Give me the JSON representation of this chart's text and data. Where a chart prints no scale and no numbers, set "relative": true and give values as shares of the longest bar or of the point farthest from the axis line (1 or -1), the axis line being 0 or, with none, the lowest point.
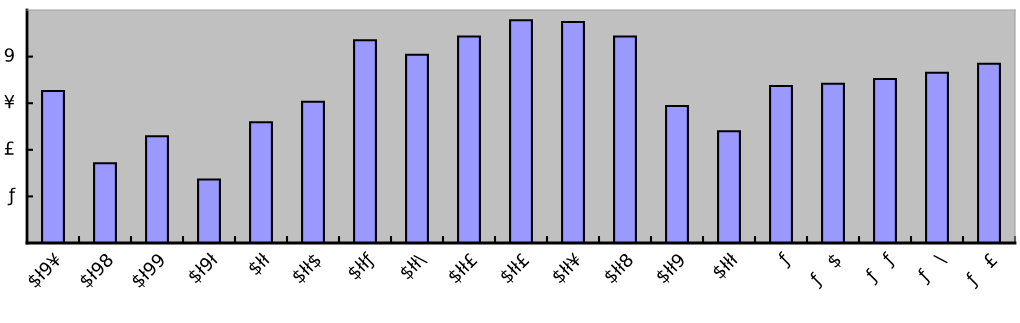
{
  "chart_data": {
    "type": "bar",
    "categories": [
      "$ł9¥",
      "$ł98",
      "$ł99",
      "$ł9ł",
      "$łł",
      "$łł$",
      "$łłƒ",
      "$łł\\",
      "$łł£",
      "$łł£",
      "$łł¥",
      "$łł8",
      "$łł9",
      "$łłł",
      "ƒ",
      "ƒ   $",
      "ƒ   ƒ",
      "ƒ   \\",
      "ƒ   £"
    ],
    "values": [
      0.682,
      0.358,
      0.479,
      0.285,
      0.542,
      0.634,
      0.91,
      0.845,
      0.927,
      1,
      0.992,
      0.927,
      0.615,
      0.502,
      0.705,
      0.715,
      0.736,
      0.764,
      0.805
    ],
    "color": "#9999ff",
    "relative": true,
    "annotations": [
      "ƒ",
      "£",
      "¥",
      "9"
    ]
  }
}
